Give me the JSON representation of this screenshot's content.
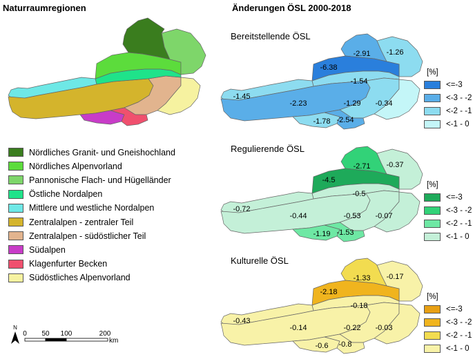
{
  "titles": {
    "left": "Naturraumregionen",
    "right": "Änderungen ÖSL 2000-2018"
  },
  "regions_legend": [
    {
      "label": "Nördliches Granit- und Gneishochland",
      "color": "#3a7d1e"
    },
    {
      "label": "Nördliches Alpenvorland",
      "color": "#5cdc3c"
    },
    {
      "label": "Pannonische Flach- und Hügelländer",
      "color": "#7ed66a"
    },
    {
      "label": "Östliche Nordalpen",
      "color": "#1fe38a"
    },
    {
      "label": "Mittlere und westliche Nordalpen",
      "color": "#6ee8e6"
    },
    {
      "label": "Zentralalpen - zentraler Teil",
      "color": "#d4b42c"
    },
    {
      "label": "Zentralalpen - südöstlicher Teil",
      "color": "#e2b48e"
    },
    {
      "label": "Südalpen",
      "color": "#c83cc8"
    },
    {
      "label": "Klagenfurter Becken",
      "color": "#f0506e"
    },
    {
      "label": "Südöstliches Alpenvorland",
      "color": "#f6f2a0"
    }
  ],
  "scale_bar": {
    "north": "N",
    "ticks": [
      "0",
      "50",
      "100",
      "200"
    ],
    "unit": "km"
  },
  "maps": [
    {
      "title": "Bereitstellende ÖSL",
      "legend_title": "[%]",
      "legend": [
        {
          "label": "<=-3",
          "color": "#2a7fdc"
        },
        {
          "label": "<-3 - -2",
          "color": "#5aaee8"
        },
        {
          "label": "<-2 - -1",
          "color": "#8ddcf0"
        },
        {
          "label": "<-1 - 0",
          "color": "#c4f6f8"
        }
      ],
      "values": [
        {
          "region": "Nördliches Granit- und Gneishochland",
          "value": "-2.91"
        },
        {
          "region": "Pannonische Flach- und Hügelländer",
          "value": "-1.26"
        },
        {
          "region": "Nördliches Alpenvorland",
          "value": "-6.38"
        },
        {
          "region": "Östliche Nordalpen",
          "value": "-1.54"
        },
        {
          "region": "Mittlere und westliche Nordalpen",
          "value": "-1.45"
        },
        {
          "region": "Zentralalpen - zentraler Teil",
          "value": "-2.23"
        },
        {
          "region": "Zentralalpen - südöstlicher Teil",
          "value": "-1.29"
        },
        {
          "region": "Südöstliches Alpenvorland",
          "value": "-0.34"
        },
        {
          "region": "Südalpen",
          "value": "-1.78"
        },
        {
          "region": "Klagenfurter Becken",
          "value": "-2.54"
        }
      ]
    },
    {
      "title": "Regulierende ÖSL",
      "legend_title": "[%]",
      "legend": [
        {
          "label": "<=-3",
          "color": "#1eaa5a"
        },
        {
          "label": "<-3 - -2",
          "color": "#32d278"
        },
        {
          "label": "<-2 - -1",
          "color": "#6ee8a4"
        },
        {
          "label": "<-1 - 0",
          "color": "#c4f0d8"
        }
      ],
      "values": [
        {
          "region": "Nördliches Granit- und Gneishochland",
          "value": "-2.71"
        },
        {
          "region": "Pannonische Flach- und Hügelländer",
          "value": "-0.37"
        },
        {
          "region": "Nördliches Alpenvorland",
          "value": "-4.5"
        },
        {
          "region": "Östliche Nordalpen",
          "value": "-0.5"
        },
        {
          "region": "Mittlere und westliche Nordalpen",
          "value": "-0.72"
        },
        {
          "region": "Zentralalpen - zentraler Teil",
          "value": "-0.44"
        },
        {
          "region": "Zentralalpen - südöstlicher Teil",
          "value": "-0.53"
        },
        {
          "region": "Südöstliches Alpenvorland",
          "value": "-0.07"
        },
        {
          "region": "Südalpen",
          "value": "-1.19"
        },
        {
          "region": "Klagenfurter Becken",
          "value": "-1.53"
        }
      ]
    },
    {
      "title": "Kulturelle ÖSL",
      "legend_title": "[%]",
      "legend": [
        {
          "label": "<=-3",
          "color": "#e8a014"
        },
        {
          "label": "<-3 - -2",
          "color": "#f0b41e"
        },
        {
          "label": "<-2 - -1",
          "color": "#f2dc50"
        },
        {
          "label": "<-1 - 0",
          "color": "#f8f2a8"
        }
      ],
      "values": [
        {
          "region": "Nördliches Granit- und Gneishochland",
          "value": "-1.33"
        },
        {
          "region": "Pannonische Flach- und Hügelländer",
          "value": "-0.17"
        },
        {
          "region": "Nördliches Alpenvorland",
          "value": "-2.18"
        },
        {
          "region": "Östliche Nordalpen",
          "value": "-0.18"
        },
        {
          "region": "Mittlere und westliche Nordalpen",
          "value": "-0.43"
        },
        {
          "region": "Zentralalpen - zentraler Teil",
          "value": "-0.14"
        },
        {
          "region": "Zentralalpen - südöstlicher Teil",
          "value": "-0.22"
        },
        {
          "region": "Südöstliches Alpenvorland",
          "value": "-0.03"
        },
        {
          "region": "Südalpen",
          "value": "-0.6"
        },
        {
          "region": "Klagenfurter Becken",
          "value": "-0.8"
        }
      ]
    }
  ]
}
